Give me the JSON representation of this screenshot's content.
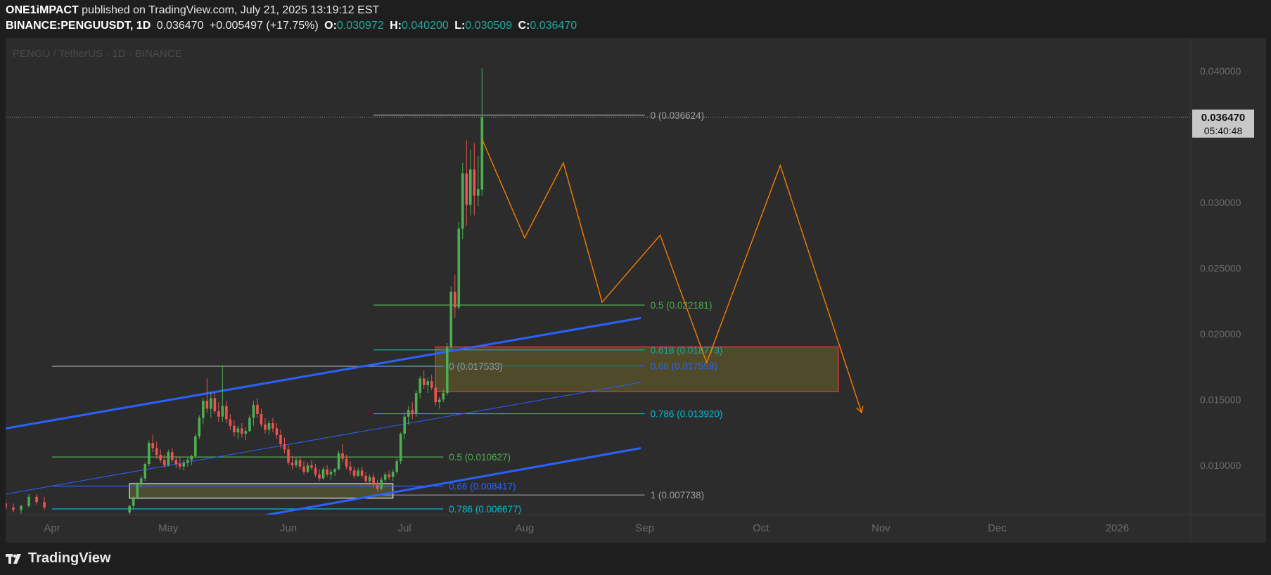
{
  "header": {
    "publisher": "ONE1iMPACT",
    "published_text": "published on TradingView.com, July 21, 2025 13:19:12 EST",
    "symbol": "BINANCE:PENGUUSDT, 1D",
    "last": "0.036470",
    "change": "+0.005497 (+17.75%)",
    "o_label": "O:",
    "o_value": "0.030972",
    "h_label": "H:",
    "h_value": "0.040200",
    "l_label": "L:",
    "l_value": "0.030509",
    "c_label": "C:",
    "c_value": "0.036470"
  },
  "watermark": "PENGU / TetherUS · 1D · BINANCE",
  "price_badge": {
    "price": "0.036470",
    "countdown": "05:40:48"
  },
  "footer": {
    "brand": "TradingView"
  },
  "colors": {
    "up": "#4caf50",
    "down": "#ef5350",
    "channel": "#2962ff",
    "projection": "#f57c00",
    "fib_green": "#4caf50",
    "fib_teal": "#26a69a",
    "fib_blue": "#2962ff",
    "fib_cyan": "#00bcd4",
    "fib_gray": "#9e9e9e"
  },
  "chart_data": {
    "type": "candlestick",
    "symbol": "PENGU / TetherUS",
    "interval": "1D",
    "ylim": [
      0.00625,
      0.0425
    ],
    "y_ticks": [
      "0.040000",
      "0.030000",
      "0.025000",
      "0.020000",
      "0.015000",
      "0.010000"
    ],
    "y_tick_values": [
      0.04,
      0.03,
      0.025,
      0.02,
      0.015,
      0.01
    ],
    "x_ticks": [
      "Apr",
      "May",
      "Jun",
      "Jul",
      "Aug",
      "Sep",
      "Oct",
      "Nov",
      "Dec",
      "2026"
    ],
    "x_tick_dates": [
      "2025-04-01",
      "2025-05-01",
      "2025-06-01",
      "2025-07-01",
      "2025-08-01",
      "2025-09-01",
      "2025-10-01",
      "2025-11-01",
      "2025-12-01",
      "2026-01-01"
    ],
    "xlim": [
      "2025-03-20",
      "2026-01-20"
    ],
    "candles": [
      {
        "d": "2025-03-20",
        "o": 0.0071,
        "h": 0.0074,
        "l": 0.0066,
        "c": 0.0068
      },
      {
        "d": "2025-03-22",
        "o": 0.0068,
        "h": 0.0071,
        "l": 0.0064,
        "c": 0.0066
      },
      {
        "d": "2025-03-24",
        "o": 0.0066,
        "h": 0.007,
        "l": 0.0063,
        "c": 0.0069
      },
      {
        "d": "2025-03-26",
        "o": 0.0069,
        "h": 0.0078,
        "l": 0.0068,
        "c": 0.0076
      },
      {
        "d": "2025-03-28",
        "o": 0.0076,
        "h": 0.0078,
        "l": 0.007,
        "c": 0.0072
      },
      {
        "d": "2025-03-30",
        "o": 0.0072,
        "h": 0.0076,
        "l": 0.0066,
        "c": 0.0068
      },
      {
        "d": "2025-04-21",
        "o": 0.0064,
        "h": 0.007,
        "l": 0.0062,
        "c": 0.0069
      },
      {
        "d": "2025-04-22",
        "o": 0.0069,
        "h": 0.0077,
        "l": 0.0067,
        "c": 0.0075
      },
      {
        "d": "2025-04-23",
        "o": 0.0075,
        "h": 0.0087,
        "l": 0.0074,
        "c": 0.0086
      },
      {
        "d": "2025-04-24",
        "o": 0.0086,
        "h": 0.0092,
        "l": 0.0083,
        "c": 0.009
      },
      {
        "d": "2025-04-25",
        "o": 0.009,
        "h": 0.0102,
        "l": 0.0088,
        "c": 0.0101
      },
      {
        "d": "2025-04-26",
        "o": 0.0101,
        "h": 0.0119,
        "l": 0.0099,
        "c": 0.0117
      },
      {
        "d": "2025-04-27",
        "o": 0.0117,
        "h": 0.0123,
        "l": 0.011,
        "c": 0.0113
      },
      {
        "d": "2025-04-28",
        "o": 0.0113,
        "h": 0.0118,
        "l": 0.0105,
        "c": 0.0108
      },
      {
        "d": "2025-04-29",
        "o": 0.0108,
        "h": 0.0112,
        "l": 0.0102,
        "c": 0.0104
      },
      {
        "d": "2025-04-30",
        "o": 0.0104,
        "h": 0.0108,
        "l": 0.0098,
        "c": 0.01
      },
      {
        "d": "2025-05-01",
        "o": 0.01,
        "h": 0.0112,
        "l": 0.0099,
        "c": 0.011
      },
      {
        "d": "2025-05-02",
        "o": 0.011,
        "h": 0.0113,
        "l": 0.0102,
        "c": 0.0104
      },
      {
        "d": "2025-05-03",
        "o": 0.0104,
        "h": 0.0107,
        "l": 0.0098,
        "c": 0.0101
      },
      {
        "d": "2025-05-04",
        "o": 0.0101,
        "h": 0.0106,
        "l": 0.0097,
        "c": 0.0099
      },
      {
        "d": "2025-05-05",
        "o": 0.0099,
        "h": 0.0104,
        "l": 0.0096,
        "c": 0.0102
      },
      {
        "d": "2025-05-06",
        "o": 0.0102,
        "h": 0.0106,
        "l": 0.0099,
        "c": 0.0104
      },
      {
        "d": "2025-05-07",
        "o": 0.0104,
        "h": 0.0108,
        "l": 0.01,
        "c": 0.0107
      },
      {
        "d": "2025-05-08",
        "o": 0.0107,
        "h": 0.0124,
        "l": 0.0105,
        "c": 0.0122
      },
      {
        "d": "2025-05-09",
        "o": 0.0122,
        "h": 0.0138,
        "l": 0.012,
        "c": 0.0136
      },
      {
        "d": "2025-05-10",
        "o": 0.0136,
        "h": 0.0151,
        "l": 0.0131,
        "c": 0.0149
      },
      {
        "d": "2025-05-11",
        "o": 0.0149,
        "h": 0.0166,
        "l": 0.014,
        "c": 0.0143
      },
      {
        "d": "2025-05-12",
        "o": 0.0143,
        "h": 0.0156,
        "l": 0.0136,
        "c": 0.0151
      },
      {
        "d": "2025-05-13",
        "o": 0.0151,
        "h": 0.0155,
        "l": 0.0139,
        "c": 0.0141
      },
      {
        "d": "2025-05-14",
        "o": 0.0141,
        "h": 0.0148,
        "l": 0.0133,
        "c": 0.0137
      },
      {
        "d": "2025-05-15",
        "o": 0.0137,
        "h": 0.0176,
        "l": 0.0133,
        "c": 0.0145
      },
      {
        "d": "2025-05-16",
        "o": 0.0145,
        "h": 0.0149,
        "l": 0.0132,
        "c": 0.0135
      },
      {
        "d": "2025-05-17",
        "o": 0.0135,
        "h": 0.0139,
        "l": 0.0127,
        "c": 0.013
      },
      {
        "d": "2025-05-18",
        "o": 0.013,
        "h": 0.0134,
        "l": 0.0122,
        "c": 0.0125
      },
      {
        "d": "2025-05-19",
        "o": 0.0125,
        "h": 0.013,
        "l": 0.012,
        "c": 0.0128
      },
      {
        "d": "2025-05-20",
        "o": 0.0128,
        "h": 0.0132,
        "l": 0.0121,
        "c": 0.0124
      },
      {
        "d": "2025-05-21",
        "o": 0.0124,
        "h": 0.0129,
        "l": 0.0119,
        "c": 0.0126
      },
      {
        "d": "2025-05-22",
        "o": 0.0126,
        "h": 0.0138,
        "l": 0.0125,
        "c": 0.0136
      },
      {
        "d": "2025-05-23",
        "o": 0.0136,
        "h": 0.0149,
        "l": 0.013,
        "c": 0.0146
      },
      {
        "d": "2025-05-24",
        "o": 0.0146,
        "h": 0.0151,
        "l": 0.0136,
        "c": 0.0139
      },
      {
        "d": "2025-05-25",
        "o": 0.0139,
        "h": 0.0143,
        "l": 0.0129,
        "c": 0.0131
      },
      {
        "d": "2025-05-26",
        "o": 0.0131,
        "h": 0.0136,
        "l": 0.0124,
        "c": 0.0127
      },
      {
        "d": "2025-05-27",
        "o": 0.0127,
        "h": 0.0134,
        "l": 0.0123,
        "c": 0.0132
      },
      {
        "d": "2025-05-28",
        "o": 0.0132,
        "h": 0.0136,
        "l": 0.0125,
        "c": 0.0128
      },
      {
        "d": "2025-05-29",
        "o": 0.0128,
        "h": 0.0132,
        "l": 0.012,
        "c": 0.0123
      },
      {
        "d": "2025-05-30",
        "o": 0.0123,
        "h": 0.0127,
        "l": 0.0113,
        "c": 0.0116
      },
      {
        "d": "2025-05-31",
        "o": 0.0116,
        "h": 0.0121,
        "l": 0.0109,
        "c": 0.0112
      },
      {
        "d": "2025-06-01",
        "o": 0.0112,
        "h": 0.0115,
        "l": 0.01,
        "c": 0.0102
      },
      {
        "d": "2025-06-02",
        "o": 0.0102,
        "h": 0.0107,
        "l": 0.0097,
        "c": 0.01
      },
      {
        "d": "2025-06-03",
        "o": 0.01,
        "h": 0.0106,
        "l": 0.0098,
        "c": 0.0104
      },
      {
        "d": "2025-06-04",
        "o": 0.0104,
        "h": 0.0107,
        "l": 0.0097,
        "c": 0.0099
      },
      {
        "d": "2025-06-05",
        "o": 0.0099,
        "h": 0.0103,
        "l": 0.0093,
        "c": 0.0095
      },
      {
        "d": "2025-06-06",
        "o": 0.0095,
        "h": 0.0102,
        "l": 0.0094,
        "c": 0.01
      },
      {
        "d": "2025-06-07",
        "o": 0.01,
        "h": 0.0104,
        "l": 0.0096,
        "c": 0.0098
      },
      {
        "d": "2025-06-08",
        "o": 0.0098,
        "h": 0.0101,
        "l": 0.0091,
        "c": 0.0093
      },
      {
        "d": "2025-06-09",
        "o": 0.0093,
        "h": 0.0097,
        "l": 0.0088,
        "c": 0.009
      },
      {
        "d": "2025-06-10",
        "o": 0.009,
        "h": 0.0099,
        "l": 0.0089,
        "c": 0.0097
      },
      {
        "d": "2025-06-11",
        "o": 0.0097,
        "h": 0.01,
        "l": 0.0091,
        "c": 0.0093
      },
      {
        "d": "2025-06-12",
        "o": 0.0093,
        "h": 0.0097,
        "l": 0.0089,
        "c": 0.0095
      },
      {
        "d": "2025-06-13",
        "o": 0.0095,
        "h": 0.0098,
        "l": 0.0092,
        "c": 0.0097
      },
      {
        "d": "2025-06-14",
        "o": 0.0097,
        "h": 0.0111,
        "l": 0.0096,
        "c": 0.0109
      },
      {
        "d": "2025-06-15",
        "o": 0.0109,
        "h": 0.0116,
        "l": 0.0102,
        "c": 0.0105
      },
      {
        "d": "2025-06-16",
        "o": 0.0105,
        "h": 0.0108,
        "l": 0.0097,
        "c": 0.0099
      },
      {
        "d": "2025-06-17",
        "o": 0.0099,
        "h": 0.0103,
        "l": 0.0093,
        "c": 0.0096
      },
      {
        "d": "2025-06-18",
        "o": 0.0096,
        "h": 0.0099,
        "l": 0.009,
        "c": 0.0092
      },
      {
        "d": "2025-06-19",
        "o": 0.0092,
        "h": 0.0098,
        "l": 0.0091,
        "c": 0.0096
      },
      {
        "d": "2025-06-20",
        "o": 0.0096,
        "h": 0.0099,
        "l": 0.009,
        "c": 0.0092
      },
      {
        "d": "2025-06-21",
        "o": 0.0092,
        "h": 0.0095,
        "l": 0.0086,
        "c": 0.0088
      },
      {
        "d": "2025-06-22",
        "o": 0.0088,
        "h": 0.0093,
        "l": 0.0085,
        "c": 0.0091
      },
      {
        "d": "2025-06-23",
        "o": 0.0091,
        "h": 0.0094,
        "l": 0.0083,
        "c": 0.0085
      },
      {
        "d": "2025-06-24",
        "o": 0.0085,
        "h": 0.0089,
        "l": 0.008,
        "c": 0.0082
      },
      {
        "d": "2025-06-25",
        "o": 0.0082,
        "h": 0.0091,
        "l": 0.0081,
        "c": 0.0089
      },
      {
        "d": "2025-06-26",
        "o": 0.0089,
        "h": 0.0095,
        "l": 0.0087,
        "c": 0.0093
      },
      {
        "d": "2025-06-27",
        "o": 0.0093,
        "h": 0.0096,
        "l": 0.0089,
        "c": 0.0091
      },
      {
        "d": "2025-06-28",
        "o": 0.0091,
        "h": 0.0097,
        "l": 0.0088,
        "c": 0.0095
      },
      {
        "d": "2025-06-29",
        "o": 0.0095,
        "h": 0.0105,
        "l": 0.0093,
        "c": 0.0103
      },
      {
        "d": "2025-06-30",
        "o": 0.0103,
        "h": 0.0125,
        "l": 0.0101,
        "c": 0.0124
      },
      {
        "d": "2025-07-01",
        "o": 0.0124,
        "h": 0.014,
        "l": 0.012,
        "c": 0.0137
      },
      {
        "d": "2025-07-02",
        "o": 0.0137,
        "h": 0.0145,
        "l": 0.0131,
        "c": 0.0142
      },
      {
        "d": "2025-07-03",
        "o": 0.0142,
        "h": 0.0148,
        "l": 0.0135,
        "c": 0.0139
      },
      {
        "d": "2025-07-04",
        "o": 0.0139,
        "h": 0.0157,
        "l": 0.0137,
        "c": 0.0155
      },
      {
        "d": "2025-07-05",
        "o": 0.0155,
        "h": 0.0168,
        "l": 0.0151,
        "c": 0.0166
      },
      {
        "d": "2025-07-06",
        "o": 0.0166,
        "h": 0.0172,
        "l": 0.0158,
        "c": 0.0161
      },
      {
        "d": "2025-07-07",
        "o": 0.0161,
        "h": 0.0167,
        "l": 0.0155,
        "c": 0.0164
      },
      {
        "d": "2025-07-08",
        "o": 0.0164,
        "h": 0.0169,
        "l": 0.0157,
        "c": 0.0159
      },
      {
        "d": "2025-07-09",
        "o": 0.0159,
        "h": 0.0163,
        "l": 0.0145,
        "c": 0.0148
      },
      {
        "d": "2025-07-10",
        "o": 0.0148,
        "h": 0.0152,
        "l": 0.0143,
        "c": 0.015
      },
      {
        "d": "2025-07-11",
        "o": 0.015,
        "h": 0.0158,
        "l": 0.0148,
        "c": 0.0155
      },
      {
        "d": "2025-07-12",
        "o": 0.0155,
        "h": 0.0193,
        "l": 0.0153,
        "c": 0.019
      },
      {
        "d": "2025-07-13",
        "o": 0.019,
        "h": 0.0236,
        "l": 0.0188,
        "c": 0.0232
      },
      {
        "d": "2025-07-14",
        "o": 0.0232,
        "h": 0.0245,
        "l": 0.0212,
        "c": 0.022
      },
      {
        "d": "2025-07-15",
        "o": 0.022,
        "h": 0.0285,
        "l": 0.0218,
        "c": 0.028
      },
      {
        "d": "2025-07-16",
        "o": 0.028,
        "h": 0.033,
        "l": 0.0272,
        "c": 0.0322
      },
      {
        "d": "2025-07-17",
        "o": 0.0322,
        "h": 0.0347,
        "l": 0.0282,
        "c": 0.0298
      },
      {
        "d": "2025-07-18",
        "o": 0.0298,
        "h": 0.034,
        "l": 0.029,
        "c": 0.0325
      },
      {
        "d": "2025-07-19",
        "o": 0.0325,
        "h": 0.0345,
        "l": 0.029,
        "c": 0.0305
      },
      {
        "d": "2025-07-20",
        "o": 0.0305,
        "h": 0.0335,
        "l": 0.0297,
        "c": 0.031
      },
      {
        "d": "2025-07-21",
        "o": 0.030972,
        "h": 0.0402,
        "l": 0.030509,
        "c": 0.03647
      }
    ],
    "last_price": 0.03647,
    "fib_upper": {
      "date_range": [
        "2025-06-23",
        "2025-09-01"
      ],
      "levels": [
        {
          "label": "0 (0.036624)",
          "price": 0.036624,
          "color": "#9e9e9e"
        },
        {
          "label": "0.5 (0.022181)",
          "price": 0.022181,
          "color": "#4caf50"
        },
        {
          "label": "0.618 (0.018773)",
          "price": 0.018773,
          "color": "#26a69a"
        },
        {
          "label": "0.66 (0.017559)",
          "price": 0.017559,
          "color": "#2962ff"
        },
        {
          "label": "0.786 (0.013920)",
          "price": 0.01392,
          "color": "#00bcd4"
        },
        {
          "label": "1 (0.007738)",
          "price": 0.007738,
          "color": "#9e9e9e"
        }
      ]
    },
    "fib_lower": {
      "date_range": [
        "2025-04-01",
        "2025-07-11"
      ],
      "levels": [
        {
          "label": "0 (0.017533)",
          "price": 0.017533,
          "color": "#9e9e9e"
        },
        {
          "label": "0.5 (0.010627)",
          "price": 0.010627,
          "color": "#4caf50"
        },
        {
          "label": "0.66 (0.008417)",
          "price": 0.008417,
          "color": "#2962ff"
        },
        {
          "label": "0.786 (0.006677)",
          "price": 0.006677,
          "color": "#00bcd4"
        }
      ]
    },
    "zones": [
      {
        "date_range": [
          "2025-07-09",
          "2025-10-21"
        ],
        "price_range": [
          0.0156,
          0.019
        ],
        "style": "red"
      },
      {
        "date_range": [
          "2025-04-21",
          "2025-06-28"
        ],
        "price_range": [
          0.0075,
          0.0086
        ],
        "style": "white"
      }
    ],
    "channel_lines": [
      {
        "from": [
          "2025-03-20",
          0.0128
        ],
        "to": [
          "2025-08-31",
          0.0212
        ],
        "weight": "thick"
      },
      {
        "from": [
          "2025-03-20",
          0.0078
        ],
        "to": [
          "2025-08-31",
          0.0163
        ],
        "weight": "thin"
      },
      {
        "from": [
          "2025-05-26",
          0.0062
        ],
        "to": [
          "2025-08-31",
          0.0113
        ],
        "weight": "thick"
      }
    ],
    "projection_path": [
      [
        "2025-07-21",
        0.0348
      ],
      [
        "2025-08-01",
        0.0273
      ],
      [
        "2025-08-11",
        0.033
      ],
      [
        "2025-08-21",
        0.0224
      ],
      [
        "2025-09-05",
        0.0275
      ],
      [
        "2025-09-17",
        0.0178
      ],
      [
        "2025-10-06",
        0.0328
      ],
      [
        "2025-10-27",
        0.014
      ]
    ]
  }
}
